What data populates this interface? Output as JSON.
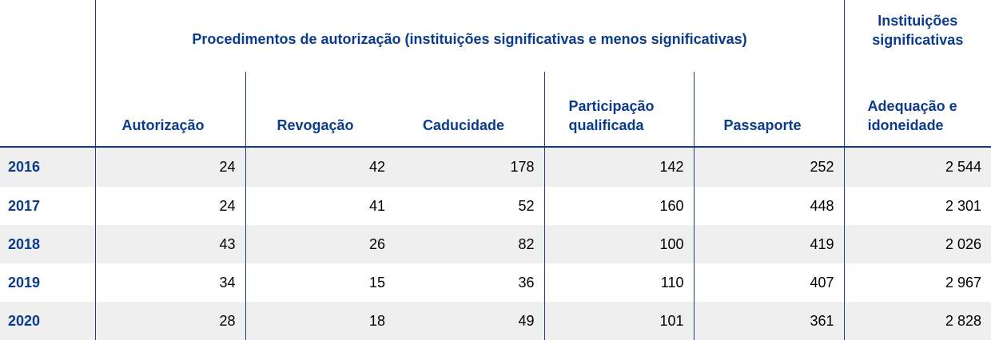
{
  "header": {
    "group_label": "Procedimentos de autorização (instituições significativas e menos significativas)",
    "sig_label": "Instituições significativas",
    "columns": [
      "Autorização",
      "Revogação",
      "Caducidade",
      "Participação qualificada",
      "Passaporte",
      "Adequação e idoneidade"
    ]
  },
  "rows": [
    {
      "year": "2016",
      "values": [
        "24",
        "42",
        "178",
        "142",
        "252",
        "2 544"
      ]
    },
    {
      "year": "2017",
      "values": [
        "24",
        "41",
        "52",
        "160",
        "448",
        "2 301"
      ]
    },
    {
      "year": "2018",
      "values": [
        "43",
        "26",
        "82",
        "100",
        "419",
        "2 026"
      ]
    },
    {
      "year": "2019",
      "values": [
        "34",
        "15",
        "36",
        "110",
        "407",
        "2 967"
      ]
    },
    {
      "year": "2020",
      "values": [
        "28",
        "18",
        "49",
        "101",
        "361",
        "2 828"
      ]
    }
  ],
  "colors": {
    "header_text": "#0b3b8c",
    "row_shade": "#efefef",
    "rule": "#1a3d8f"
  }
}
